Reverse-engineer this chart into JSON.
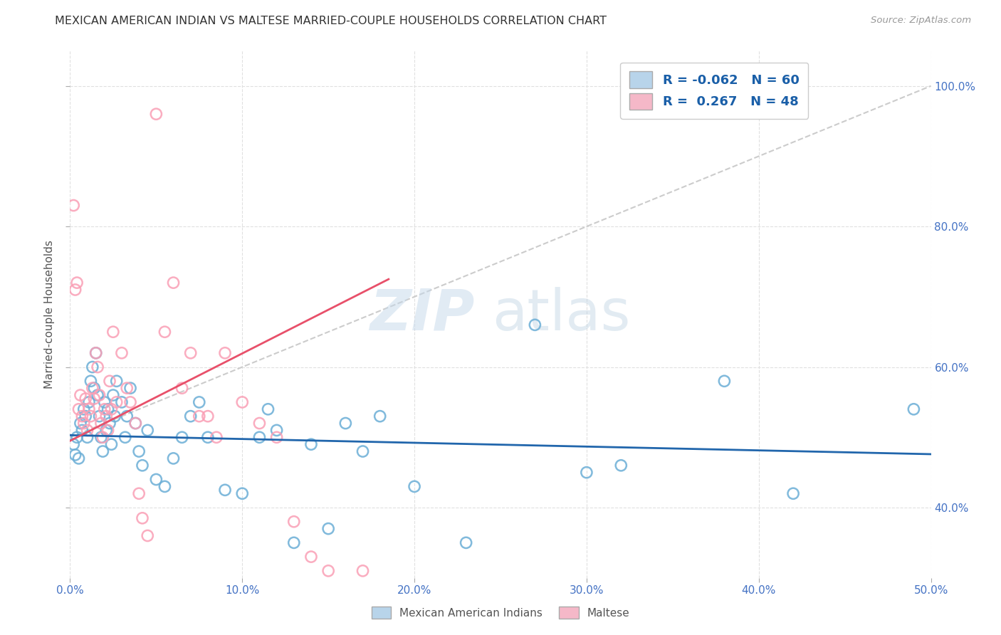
{
  "title": "MEXICAN AMERICAN INDIAN VS MALTESE MARRIED-COUPLE HOUSEHOLDS CORRELATION CHART",
  "source": "Source: ZipAtlas.com",
  "xlabel_ticks": [
    "0.0%",
    "10.0%",
    "20.0%",
    "30.0%",
    "40.0%",
    "50.0%"
  ],
  "ylabel_ticks": [
    "40.0%",
    "60.0%",
    "80.0%",
    "100.0%"
  ],
  "ylabel_label": "Married-couple Households",
  "xlim": [
    0.0,
    0.5
  ],
  "ylim": [
    0.3,
    1.05
  ],
  "blue_scatter": [
    [
      0.002,
      0.49
    ],
    [
      0.003,
      0.475
    ],
    [
      0.004,
      0.5
    ],
    [
      0.005,
      0.47
    ],
    [
      0.006,
      0.52
    ],
    [
      0.007,
      0.51
    ],
    [
      0.008,
      0.54
    ],
    [
      0.009,
      0.53
    ],
    [
      0.01,
      0.5
    ],
    [
      0.011,
      0.55
    ],
    [
      0.012,
      0.58
    ],
    [
      0.013,
      0.6
    ],
    [
      0.014,
      0.57
    ],
    [
      0.015,
      0.62
    ],
    [
      0.016,
      0.56
    ],
    [
      0.017,
      0.53
    ],
    [
      0.018,
      0.5
    ],
    [
      0.019,
      0.48
    ],
    [
      0.02,
      0.55
    ],
    [
      0.021,
      0.51
    ],
    [
      0.022,
      0.54
    ],
    [
      0.023,
      0.52
    ],
    [
      0.024,
      0.49
    ],
    [
      0.025,
      0.56
    ],
    [
      0.026,
      0.53
    ],
    [
      0.027,
      0.58
    ],
    [
      0.03,
      0.55
    ],
    [
      0.032,
      0.5
    ],
    [
      0.033,
      0.53
    ],
    [
      0.035,
      0.57
    ],
    [
      0.038,
      0.52
    ],
    [
      0.04,
      0.48
    ],
    [
      0.042,
      0.46
    ],
    [
      0.045,
      0.51
    ],
    [
      0.05,
      0.44
    ],
    [
      0.055,
      0.43
    ],
    [
      0.06,
      0.47
    ],
    [
      0.065,
      0.5
    ],
    [
      0.07,
      0.53
    ],
    [
      0.075,
      0.55
    ],
    [
      0.08,
      0.5
    ],
    [
      0.09,
      0.425
    ],
    [
      0.1,
      0.42
    ],
    [
      0.11,
      0.5
    ],
    [
      0.115,
      0.54
    ],
    [
      0.12,
      0.51
    ],
    [
      0.13,
      0.35
    ],
    [
      0.14,
      0.49
    ],
    [
      0.15,
      0.37
    ],
    [
      0.16,
      0.52
    ],
    [
      0.17,
      0.48
    ],
    [
      0.18,
      0.53
    ],
    [
      0.2,
      0.43
    ],
    [
      0.23,
      0.35
    ],
    [
      0.27,
      0.66
    ],
    [
      0.3,
      0.45
    ],
    [
      0.32,
      0.46
    ],
    [
      0.38,
      0.58
    ],
    [
      0.42,
      0.42
    ],
    [
      0.49,
      0.54
    ]
  ],
  "pink_scatter": [
    [
      0.002,
      0.83
    ],
    [
      0.003,
      0.71
    ],
    [
      0.004,
      0.72
    ],
    [
      0.005,
      0.54
    ],
    [
      0.006,
      0.56
    ],
    [
      0.007,
      0.53
    ],
    [
      0.008,
      0.52
    ],
    [
      0.009,
      0.555
    ],
    [
      0.01,
      0.51
    ],
    [
      0.011,
      0.54
    ],
    [
      0.012,
      0.53
    ],
    [
      0.013,
      0.57
    ],
    [
      0.014,
      0.555
    ],
    [
      0.015,
      0.62
    ],
    [
      0.016,
      0.6
    ],
    [
      0.017,
      0.56
    ],
    [
      0.018,
      0.52
    ],
    [
      0.019,
      0.5
    ],
    [
      0.02,
      0.54
    ],
    [
      0.021,
      0.53
    ],
    [
      0.022,
      0.51
    ],
    [
      0.023,
      0.58
    ],
    [
      0.024,
      0.54
    ],
    [
      0.025,
      0.65
    ],
    [
      0.027,
      0.55
    ],
    [
      0.03,
      0.62
    ],
    [
      0.033,
      0.57
    ],
    [
      0.035,
      0.55
    ],
    [
      0.038,
      0.52
    ],
    [
      0.04,
      0.42
    ],
    [
      0.042,
      0.385
    ],
    [
      0.045,
      0.36
    ],
    [
      0.05,
      0.96
    ],
    [
      0.055,
      0.65
    ],
    [
      0.06,
      0.72
    ],
    [
      0.065,
      0.57
    ],
    [
      0.07,
      0.62
    ],
    [
      0.075,
      0.53
    ],
    [
      0.08,
      0.53
    ],
    [
      0.085,
      0.5
    ],
    [
      0.09,
      0.62
    ],
    [
      0.1,
      0.55
    ],
    [
      0.11,
      0.52
    ],
    [
      0.12,
      0.5
    ],
    [
      0.13,
      0.38
    ],
    [
      0.14,
      0.33
    ],
    [
      0.15,
      0.31
    ],
    [
      0.17,
      0.31
    ]
  ],
  "blue_line": {
    "x": [
      0.0,
      0.5
    ],
    "y": [
      0.503,
      0.476
    ]
  },
  "pink_line": {
    "x": [
      0.0,
      0.185
    ],
    "y": [
      0.495,
      0.725
    ]
  },
  "diag_line": {
    "x": [
      0.0,
      0.5
    ],
    "y": [
      0.5,
      1.0
    ]
  },
  "blue_color": "#6baed6",
  "pink_color": "#fa9fb5",
  "blue_line_color": "#2166ac",
  "pink_line_color": "#e8506a",
  "diag_line_color": "#cccccc",
  "legend_blue_fill": "#b8d4ea",
  "legend_pink_fill": "#f5b8c8",
  "watermark_zip": "ZIP",
  "watermark_atlas": "atlas",
  "background_color": "#ffffff",
  "grid_color": "#e0e0e0"
}
